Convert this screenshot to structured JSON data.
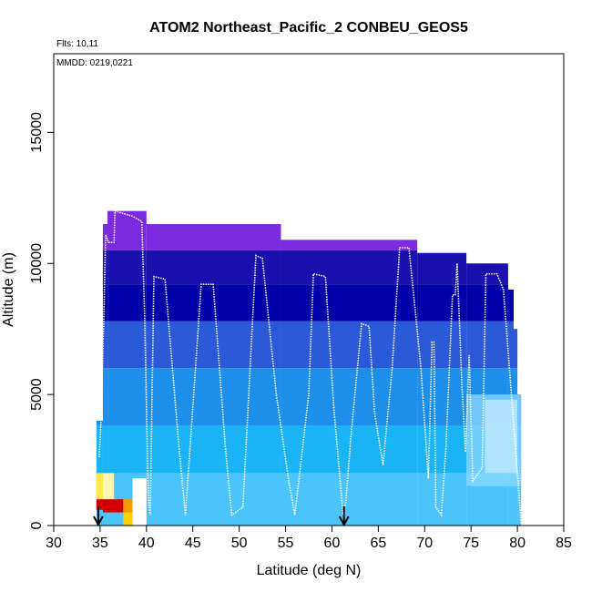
{
  "chart_data": {
    "type": "heatmap",
    "title": "ATOM2 Northeast_Pacific_2 CONBEU_GEOS5",
    "flights_note": "Flts: 10,11",
    "date_note": "MMDD: 0219,0221",
    "xlabel": "Latitude (deg N)",
    "ylabel": "Altitude (m)",
    "xlim": [
      30,
      85
    ],
    "ylim": [
      0,
      18000
    ],
    "x_ticks": [
      "30",
      "35",
      "40",
      "45",
      "50",
      "55",
      "60",
      "65",
      "70",
      "75",
      "80",
      "85"
    ],
    "y_ticks": [
      "0",
      "5000",
      "10000",
      "15000"
    ],
    "x_tick_values": [
      30,
      35,
      40,
      45,
      50,
      55,
      60,
      65,
      70,
      75,
      80,
      85
    ],
    "y_tick_values": [
      0,
      5000,
      10000,
      15000
    ],
    "colors": {
      "purple": "#7a2be0",
      "dark_blue": "#1a10b0",
      "mid_blue": "#2a5ad8",
      "light_blue": "#1ab4f5",
      "pale_blue": "#8cd8ff",
      "red": "#d40000",
      "orange": "#f59a00",
      "yellow": "#ffe84d",
      "track": "#ffffff"
    },
    "columns": [
      {
        "x0": 34.6,
        "x1": 35.3,
        "top": 4000
      },
      {
        "x0": 35.3,
        "x1": 35.8,
        "top": 11500
      },
      {
        "x0": 35.8,
        "x1": 40.0,
        "top": 12000
      },
      {
        "x0": 40.0,
        "x1": 54.5,
        "top": 11500
      },
      {
        "x0": 54.5,
        "x1": 69.2,
        "top": 10900
      },
      {
        "x0": 69.2,
        "x1": 74.5,
        "top": 10400
      },
      {
        "x0": 74.5,
        "x1": 79.0,
        "top": 10000
      },
      {
        "x0": 79.0,
        "x1": 79.6,
        "top": 9000
      },
      {
        "x0": 79.6,
        "x1": 80.0,
        "top": 7500
      },
      {
        "x0": 80.0,
        "x1": 80.4,
        "top": 5000
      }
    ],
    "altitude_bands": [
      {
        "min": 10500,
        "max": 12000,
        "color": "#7a2be0"
      },
      {
        "min": 9200,
        "max": 10500,
        "color": "#1a10b0"
      },
      {
        "min": 7800,
        "max": 9200,
        "color": "#0000a8"
      },
      {
        "min": 6000,
        "max": 7800,
        "color": "#2a5ad8"
      },
      {
        "min": 3800,
        "max": 6000,
        "color": "#1e8ee8"
      },
      {
        "min": 2000,
        "max": 3800,
        "color": "#1ab4f5"
      },
      {
        "min": 0,
        "max": 2000,
        "color": "#4cc4fa"
      }
    ],
    "surface_anomaly": [
      {
        "x0": 34.6,
        "x1": 35.3,
        "y0": 1000,
        "y1": 2000,
        "color": "#ffe84d"
      },
      {
        "x0": 34.6,
        "x1": 35.3,
        "y0": 600,
        "y1": 1000,
        "color": "#d40000"
      },
      {
        "x0": 35.3,
        "x1": 36.5,
        "y0": 1000,
        "y1": 2000,
        "color": "#fff4b0"
      },
      {
        "x0": 35.3,
        "x1": 37.5,
        "y0": 500,
        "y1": 1000,
        "color": "#d40000"
      },
      {
        "x0": 37.5,
        "x1": 38.5,
        "y0": 500,
        "y1": 1000,
        "color": "#f59a00"
      },
      {
        "x0": 38.5,
        "x1": 39.6,
        "y0": 500,
        "y1": 1000,
        "color": "#fff4b0"
      },
      {
        "x0": 37.5,
        "x1": 38.5,
        "y0": 0,
        "y1": 500,
        "color": "#ffd000"
      },
      {
        "x0": 38.5,
        "x1": 40.0,
        "y0": 0,
        "y1": 1800,
        "color": "#ffffff"
      }
    ],
    "pale_region": [
      {
        "x0": 74.5,
        "x1": 80.4,
        "y0": 1500,
        "y1": 5000,
        "color": "#8cd8ff"
      },
      {
        "x0": 76.5,
        "x1": 80.0,
        "y0": 2000,
        "y1": 4800,
        "color": "#c4ebff"
      }
    ],
    "flight_track": [
      [
        34.9,
        2600
      ],
      [
        35.1,
        4000
      ],
      [
        35.4,
        8000
      ],
      [
        35.6,
        11100
      ],
      [
        35.9,
        10800
      ],
      [
        36.5,
        10800
      ],
      [
        36.6,
        12000
      ],
      [
        38.5,
        11800
      ],
      [
        39.5,
        11600
      ],
      [
        39.8,
        8000
      ],
      [
        40.2,
        1000
      ],
      [
        40.4,
        400
      ],
      [
        40.8,
        9500
      ],
      [
        42.0,
        9400
      ],
      [
        43.5,
        3000
      ],
      [
        44.2,
        400
      ],
      [
        45.0,
        4500
      ],
      [
        45.9,
        9200
      ],
      [
        47.2,
        9200
      ],
      [
        48.5,
        3000
      ],
      [
        49.2,
        400
      ],
      [
        50.4,
        700
      ],
      [
        51.8,
        10300
      ],
      [
        52.5,
        10200
      ],
      [
        54.0,
        5000
      ],
      [
        55.3,
        1800
      ],
      [
        56.0,
        400
      ],
      [
        57.5,
        5000
      ],
      [
        58.0,
        9600
      ],
      [
        59.3,
        9500
      ],
      [
        60.2,
        4500
      ],
      [
        61.2,
        400
      ],
      [
        61.5,
        900
      ],
      [
        62.0,
        3200
      ],
      [
        63.2,
        7700
      ],
      [
        64.0,
        7600
      ],
      [
        64.6,
        4300
      ],
      [
        65.5,
        2300
      ],
      [
        66.5,
        6000
      ],
      [
        67.3,
        10600
      ],
      [
        68.3,
        10600
      ],
      [
        69.6,
        6000
      ],
      [
        70.4,
        1800
      ],
      [
        70.8,
        7000
      ],
      [
        71.0,
        7000
      ],
      [
        71.2,
        700
      ],
      [
        71.8,
        400
      ],
      [
        72.3,
        3000
      ],
      [
        73.0,
        8800
      ],
      [
        73.3,
        8800
      ],
      [
        73.5,
        10000
      ],
      [
        74.0,
        5500
      ],
      [
        74.4,
        2800
      ],
      [
        74.8,
        6500
      ],
      [
        75.2,
        1700
      ],
      [
        76.2,
        2200
      ],
      [
        76.6,
        9600
      ],
      [
        77.8,
        9600
      ],
      [
        78.5,
        9000
      ],
      [
        80.4,
        100
      ]
    ],
    "markers": [
      {
        "x": 34.8,
        "label": "down-arrow"
      },
      {
        "x": 61.3,
        "label": "down-arrow"
      }
    ]
  }
}
